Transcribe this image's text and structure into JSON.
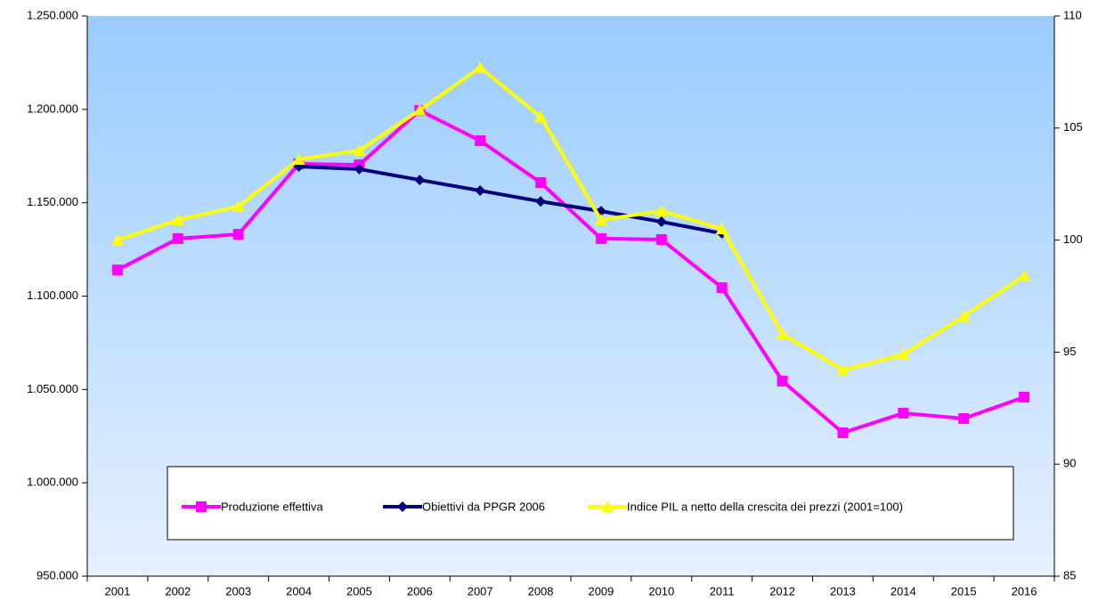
{
  "chart_data": {
    "type": "line",
    "categories": [
      "2001",
      "2002",
      "2003",
      "2004",
      "2005",
      "2006",
      "2007",
      "2008",
      "2009",
      "2010",
      "2011",
      "2012",
      "2013",
      "2014",
      "2015",
      "2016"
    ],
    "series": [
      {
        "name": "Produzione effettiva",
        "color": "#ff00ff",
        "marker": "square",
        "values": [
          1114000,
          1130800,
          1133100,
          1170800,
          1170300,
          1199400,
          1183200,
          1160800,
          1130800,
          1130300,
          1104500,
          1054500,
          1026800,
          1037300,
          1034400,
          1045900
        ]
      },
      {
        "name": "Obiettivi da PPGR 2006",
        "color": "#000080",
        "marker": "diamond",
        "values": [
          null,
          null,
          null,
          1169400,
          1168000,
          1162200,
          1156500,
          1150700,
          1145500,
          1139800,
          1133600,
          null,
          null,
          null,
          null,
          null
        ]
      },
      {
        "name": "Indice PIL a netto della crescita dei prezzi (2001=100)",
        "color": "#ffff00",
        "marker": "triangle",
        "axis": "y2",
        "values": [
          100,
          100.9,
          101.5,
          103.6,
          104.0,
          105.8,
          107.7,
          105.5,
          100.9,
          101.3,
          100.5,
          95.8,
          94.2,
          94.9,
          96.6,
          98.4
        ]
      }
    ],
    "ylim": [
      950000,
      1250000
    ],
    "yticks": [
      {
        "value": 950000,
        "label": "950.000"
      },
      {
        "value": 1000000,
        "label": "1.000.000"
      },
      {
        "value": 1050000,
        "label": "1.050.000"
      },
      {
        "value": 1100000,
        "label": "1.100.000"
      },
      {
        "value": 1150000,
        "label": "1.150.000"
      },
      {
        "value": 1200000,
        "label": "1.200.000"
      },
      {
        "value": 1250000,
        "label": "1.250.000"
      }
    ],
    "y2lim": [
      85,
      110
    ],
    "y2ticks": [
      85,
      90,
      95,
      100,
      105,
      110
    ],
    "legend": "bottom"
  }
}
